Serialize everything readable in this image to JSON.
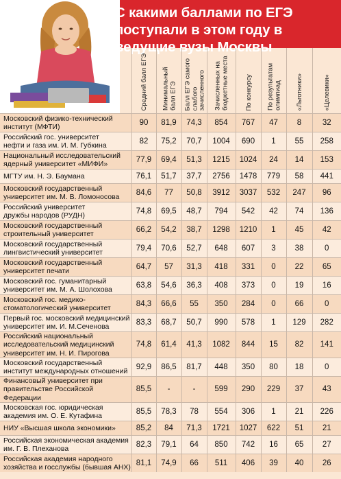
{
  "title": "С какими баллами по ЕГЭ поступали в этом году в ведущие вузы Москвы",
  "columns": [
    "Средний балл ЕГЭ",
    "Минимальный балл ЕГЭ",
    "Балл ЕГЭ самого слабого зачисленного",
    "Зачисленных на бюджетные места",
    "По конкурсу",
    "По результатам олимпиад",
    "«Льготники»",
    "«Целевики»"
  ],
  "rows": [
    {
      "name": [
        "Московский физико-технический",
        "институт (МФТИ)"
      ],
      "values": [
        "90",
        "81,9",
        "74,3",
        "854",
        "767",
        "47",
        "8",
        "32"
      ]
    },
    {
      "name": [
        "Российский гос. университет",
        "нефти и газа им. И. М. Губкина"
      ],
      "values": [
        "82",
        "75,2",
        "70,7",
        "1004",
        "690",
        "1",
        "55",
        "258"
      ]
    },
    {
      "name": [
        "Национальный исследовательский",
        "ядерный университет «МИФИ»"
      ],
      "values": [
        "77,9",
        "69,4",
        "51,3",
        "1215",
        "1024",
        "24",
        "14",
        "153"
      ]
    },
    {
      "name": [
        "МГТУ им. Н. Э. Баумана"
      ],
      "values": [
        "76,1",
        "51,7",
        "37,7",
        "2756",
        "1478",
        "779",
        "58",
        "441"
      ]
    },
    {
      "name": [
        "Московский государственный",
        "университет им. М. В. Ломоносова"
      ],
      "values": [
        "84,6",
        "77",
        "50,8",
        "3912",
        "3037",
        "532",
        "247",
        "96"
      ]
    },
    {
      "name": [
        "Российский университет",
        "дружбы народов (РУДН)"
      ],
      "values": [
        "74,8",
        "69,5",
        "48,7",
        "794",
        "542",
        "42",
        "74",
        "136"
      ]
    },
    {
      "name": [
        "Московский государственный",
        "строительный университет"
      ],
      "values": [
        "66,2",
        "54,2",
        "38,7",
        "1298",
        "1210",
        "1",
        "45",
        "42"
      ]
    },
    {
      "name": [
        "Московский государственный",
        "лингвистический университет"
      ],
      "values": [
        "79,4",
        "70,6",
        "52,7",
        "648",
        "607",
        "3",
        "38",
        "0"
      ]
    },
    {
      "name": [
        "Московский государственный",
        "университет печати"
      ],
      "values": [
        "64,7",
        "57",
        "31,3",
        "418",
        "331",
        "0",
        "22",
        "65"
      ]
    },
    {
      "name": [
        "Московский гос. гуманитарный",
        "университет им. М. А. Шолохова"
      ],
      "values": [
        "63,8",
        "54,6",
        "36,3",
        "408",
        "373",
        "0",
        "19",
        "16"
      ]
    },
    {
      "name": [
        "Московский гос. медико-",
        "стоматологический университет"
      ],
      "values": [
        "84,3",
        "66,6",
        "55",
        "350",
        "284",
        "0",
        "66",
        "0"
      ]
    },
    {
      "name": [
        "Первый гос. московский медицинский",
        "университет им. И. М.Сеченова"
      ],
      "values": [
        "83,3",
        "68,7",
        "50,7",
        "990",
        "578",
        "1",
        "129",
        "282"
      ]
    },
    {
      "name": [
        "Российский национальный",
        "исследовательский медицинский",
        "университет им. Н. И. Пирогова"
      ],
      "values": [
        "74,8",
        "61,4",
        "41,3",
        "1082",
        "844",
        "15",
        "82",
        "141"
      ]
    },
    {
      "name": [
        "Московский государственный",
        "институт международных отношений"
      ],
      "values": [
        "92,9",
        "86,5",
        "81,7",
        "448",
        "350",
        "80",
        "18",
        "0"
      ]
    },
    {
      "name": [
        "Финансовый университет при",
        "правительстве Российской Федерации"
      ],
      "values": [
        "85,5",
        "-",
        "-",
        "599",
        "290",
        "229",
        "37",
        "43"
      ]
    },
    {
      "name": [
        "Московская гос. юридическая",
        "академия им. О. Е. Кутафина"
      ],
      "values": [
        "85,5",
        "78,3",
        "78",
        "554",
        "306",
        "1",
        "21",
        "226"
      ]
    },
    {
      "name": [
        "НИУ «Высшая школа экономики»"
      ],
      "values": [
        "85,2",
        "84",
        "71,3",
        "1721",
        "1027",
        "622",
        "51",
        "21"
      ]
    },
    {
      "name": [
        "Российская экономическая академия",
        "им. Г. В. Плеханова"
      ],
      "values": [
        "82,3",
        "79,1",
        "64",
        "850",
        "742",
        "16",
        "65",
        "27"
      ]
    },
    {
      "name": [
        "Российская академия народного",
        "хозяйства и госслужбы (бывшая АНХ)"
      ],
      "values": [
        "81,1",
        "74,9",
        "66",
        "511",
        "406",
        "39",
        "40",
        "26"
      ]
    }
  ]
}
